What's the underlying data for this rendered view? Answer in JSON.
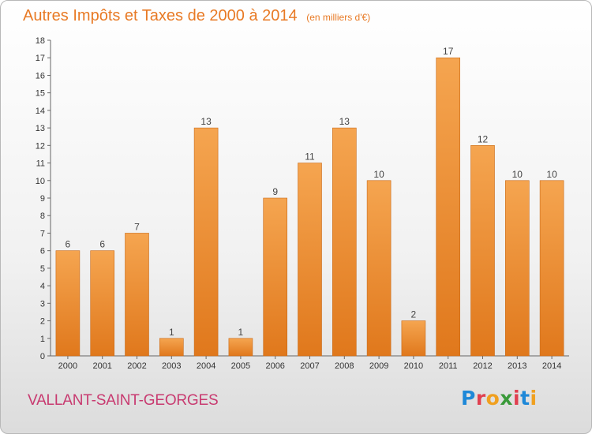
{
  "header": {
    "title": "Autres Impôts et Taxes de 2000 à 2014",
    "unit": "(en milliers d'€)"
  },
  "footer": {
    "commune": "VALLANT-SAINT-GEORGES",
    "logo_text": "Proxiti"
  },
  "colors": {
    "bar_top": "#f5a550",
    "bar_bottom": "#e0781c",
    "title": "#e87a25",
    "commune": "#c83a70"
  },
  "chart_data": {
    "type": "bar",
    "title": "Autres Impôts et Taxes de 2000 à 2014",
    "subtitle": "(en milliers d'€)",
    "categories": [
      "2000",
      "2001",
      "2002",
      "2003",
      "2004",
      "2005",
      "2006",
      "2007",
      "2008",
      "2009",
      "2010",
      "2011",
      "2012",
      "2013",
      "2014"
    ],
    "values": [
      6,
      6,
      7,
      1,
      13,
      1,
      9,
      11,
      13,
      10,
      2,
      17,
      12,
      10,
      10
    ],
    "ylim": [
      0,
      18
    ],
    "yticks": [
      0,
      1,
      2,
      3,
      4,
      5,
      6,
      7,
      8,
      9,
      10,
      11,
      12,
      13,
      14,
      15,
      16,
      17,
      18
    ],
    "grid": false,
    "data_labels": true
  }
}
